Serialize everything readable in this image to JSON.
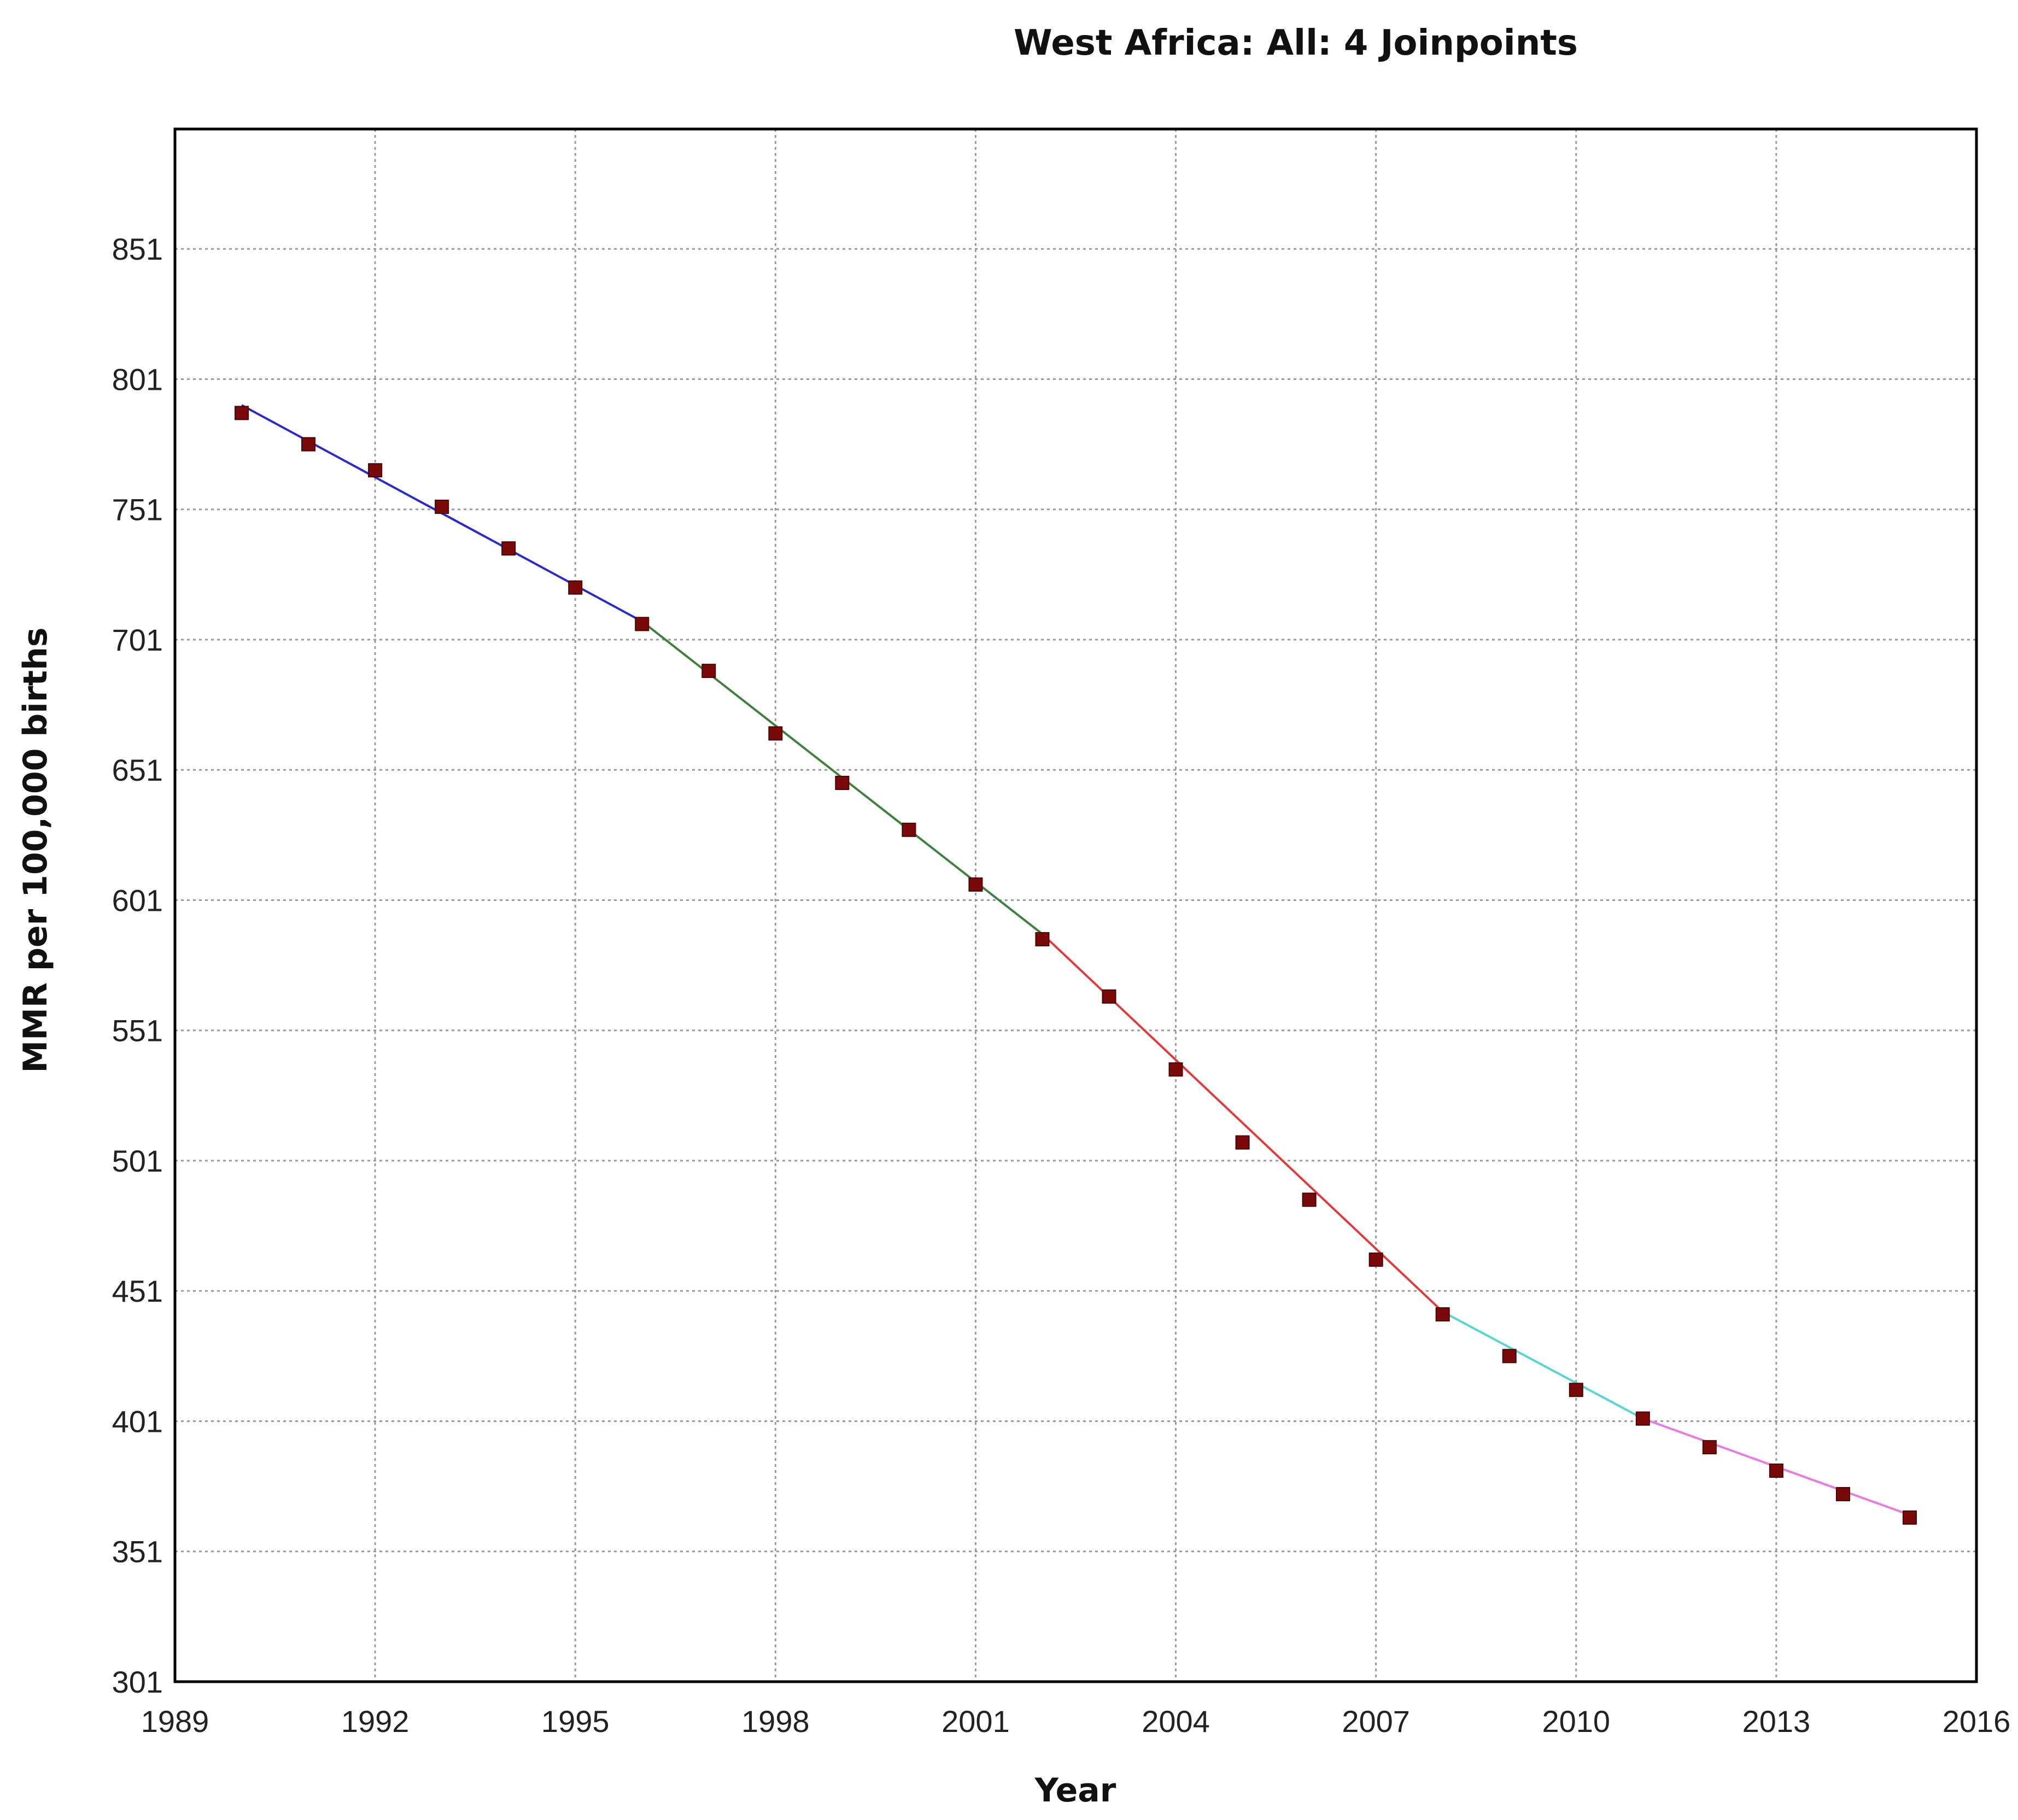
{
  "chart_data": {
    "type": "line",
    "title": "West Africa: All: 4 Joinpoints",
    "xlabel": "Year",
    "ylabel": "MMR per 100,000 births",
    "xlim": [
      1989,
      2016
    ],
    "ylim": [
      301,
      897
    ],
    "x_ticks": [
      "1989",
      "1992",
      "1995",
      "1998",
      "2001",
      "2004",
      "2007",
      "2010",
      "2013",
      "2016"
    ],
    "y_ticks": [
      "301",
      "351",
      "401",
      "451",
      "501",
      "551",
      "601",
      "651",
      "701",
      "751",
      "801",
      "851"
    ],
    "grid": true,
    "legend": "none",
    "marker_color": "#7a0a0a",
    "observed": {
      "x": [
        1990,
        1991,
        1992,
        1993,
        1994,
        1995,
        1996,
        1997,
        1998,
        1999,
        2000,
        2001,
        2002,
        2003,
        2004,
        2005,
        2006,
        2007,
        2008,
        2009,
        2010,
        2011,
        2012,
        2013,
        2014,
        2015
      ],
      "y": [
        788,
        776,
        766,
        752,
        736,
        721,
        707,
        689,
        665,
        646,
        628,
        607,
        586,
        564,
        536,
        508,
        486,
        463,
        442,
        426,
        413,
        402,
        391,
        382,
        373,
        364
      ]
    },
    "series": [
      {
        "x": [
          1990,
          1996
        ],
        "y": [
          791,
          708
        ],
        "color": "#2a2acc"
      },
      {
        "x": [
          1996,
          2002
        ],
        "y": [
          708,
          588
        ],
        "color": "#3f7f3f"
      },
      {
        "x": [
          2002,
          2008
        ],
        "y": [
          588,
          443
        ],
        "color": "#e03a3a"
      },
      {
        "x": [
          2008,
          2011
        ],
        "y": [
          443,
          402
        ],
        "color": "#55d6d0"
      },
      {
        "x": [
          2011,
          2015
        ],
        "y": [
          402,
          365
        ],
        "color": "#e87ae0"
      }
    ]
  }
}
